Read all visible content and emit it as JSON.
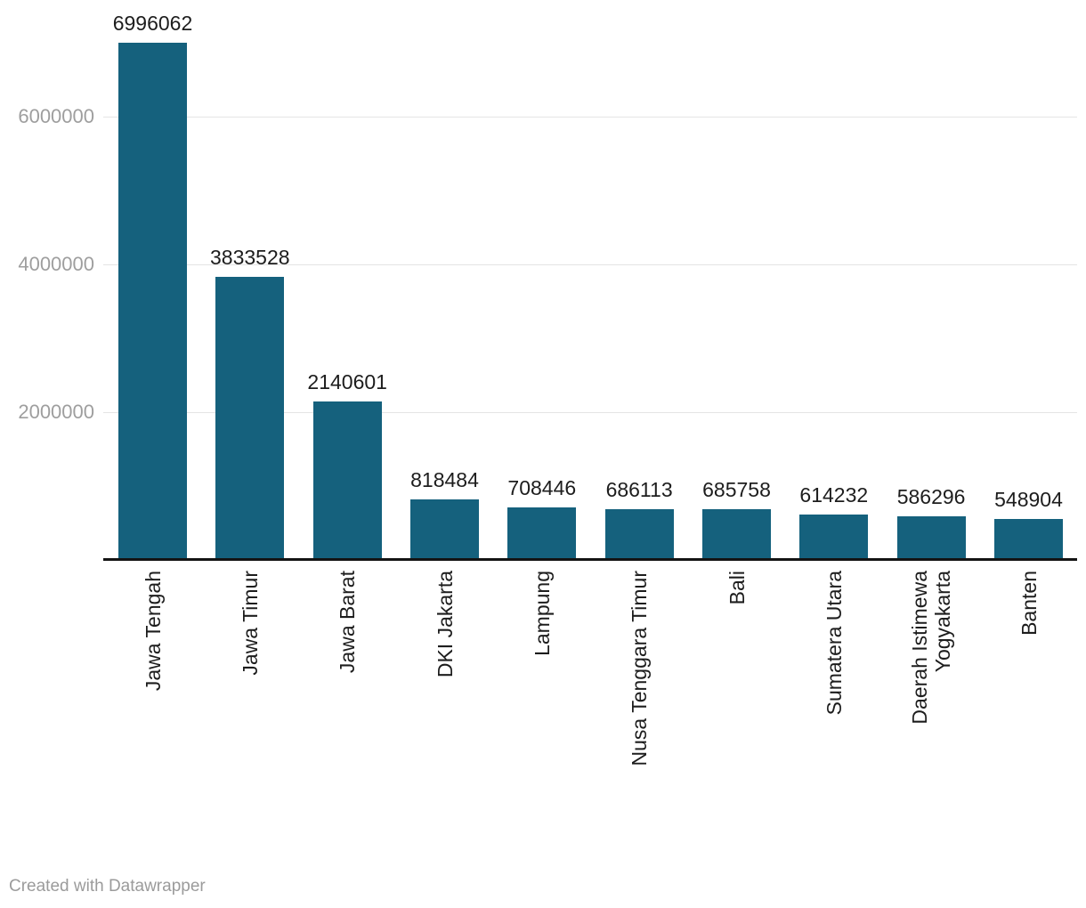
{
  "chart_data": {
    "type": "bar",
    "categories": [
      "Jawa Tengah",
      "Jawa Timur",
      "Jawa Barat",
      "DKI Jakarta",
      "Lampung",
      "Nusa Tenggara Timur",
      "Bali",
      "Sumatera Utara",
      "Daerah Istimewa Yogyakarta",
      "Banten"
    ],
    "category_display": [
      "Jawa Tengah",
      "Jawa Timur",
      "Jawa Barat",
      "DKI Jakarta",
      "Lampung",
      "Nusa Tenggara Timur",
      "Bali",
      "Sumatera Utara",
      "Daerah Istimewa\nYogyakarta",
      "Banten"
    ],
    "values": [
      6996062,
      3833528,
      2140601,
      818484,
      708446,
      686113,
      685758,
      614232,
      586296,
      548904
    ],
    "value_labels": [
      "6996062",
      "3833528",
      "2140601",
      "818484",
      "708446",
      "686113",
      "685758",
      "614232",
      "586296",
      "548904"
    ],
    "title": "",
    "xlabel": "",
    "ylabel": "",
    "ylim": [
      0,
      7000000
    ],
    "yticks": [
      2000000,
      4000000,
      6000000
    ],
    "ytick_labels": [
      "2000000",
      "4000000",
      "6000000"
    ],
    "grid": "horizontal",
    "legend": null,
    "bar_color": "#15617d",
    "orientation": "vertical",
    "x_label_rotation": -90
  },
  "colors": {
    "bar": "#15617d",
    "value_label": "#1d1d1d",
    "category_label": "#1d1d1d",
    "axis_tick_label": "#9e9e9e",
    "gridline": "#e4e4e4",
    "baseline": "#141414",
    "background": "#ffffff",
    "footer_text": "#9b9b9b"
  },
  "footer": {
    "credit": "Created with Datawrapper"
  }
}
